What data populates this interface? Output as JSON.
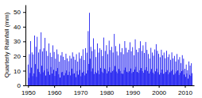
{
  "chart_data": {
    "type": "bar",
    "ylabel": "Quarterly Rainfall (mm)",
    "color": "#0000ee",
    "xlim": [
      1949.0,
      2013.5
    ],
    "ylim": [
      0,
      55
    ],
    "yticks": [
      0,
      10,
      20,
      30,
      40,
      50
    ],
    "xticks": [
      1950,
      1960,
      1970,
      1980,
      1990,
      2000,
      2010
    ],
    "x": [
      1950,
      1950.25,
      1950.5,
      1950.75,
      1951,
      1951.25,
      1951.5,
      1951.75,
      1952,
      1952.25,
      1952.5,
      1952.75,
      1953,
      1953.25,
      1953.5,
      1953.75,
      1954,
      1954.25,
      1954.5,
      1954.75,
      1955,
      1955.25,
      1955.5,
      1955.75,
      1956,
      1956.25,
      1956.5,
      1956.75,
      1957,
      1957.25,
      1957.5,
      1957.75,
      1958,
      1958.25,
      1958.5,
      1958.75,
      1959,
      1959.25,
      1959.5,
      1959.75,
      1960,
      1960.25,
      1960.5,
      1960.75,
      1961,
      1961.25,
      1961.5,
      1961.75,
      1962,
      1962.25,
      1962.5,
      1962.75,
      1963,
      1963.25,
      1963.5,
      1963.75,
      1964,
      1964.25,
      1964.5,
      1964.75,
      1965,
      1965.25,
      1965.5,
      1965.75,
      1966,
      1966.25,
      1966.5,
      1966.75,
      1967,
      1967.25,
      1967.5,
      1967.75,
      1968,
      1968.25,
      1968.5,
      1968.75,
      1969,
      1969.25,
      1969.5,
      1969.75,
      1970,
      1970.25,
      1970.5,
      1970.75,
      1971,
      1971.25,
      1971.5,
      1971.75,
      1972,
      1972.25,
      1972.5,
      1972.75,
      1973,
      1973.25,
      1973.5,
      1973.75,
      1974,
      1974.25,
      1974.5,
      1974.75,
      1975,
      1975.25,
      1975.5,
      1975.75,
      1976,
      1976.25,
      1976.5,
      1976.75,
      1977,
      1977.25,
      1977.5,
      1977.75,
      1978,
      1978.25,
      1978.5,
      1978.75,
      1979,
      1979.25,
      1979.5,
      1979.75,
      1980,
      1980.25,
      1980.5,
      1980.75,
      1981,
      1981.25,
      1981.5,
      1981.75,
      1982,
      1982.25,
      1982.5,
      1982.75,
      1983,
      1983.25,
      1983.5,
      1983.75,
      1984,
      1984.25,
      1984.5,
      1984.75,
      1985,
      1985.25,
      1985.5,
      1985.75,
      1986,
      1986.25,
      1986.5,
      1986.75,
      1987,
      1987.25,
      1987.5,
      1987.75,
      1988,
      1988.25,
      1988.5,
      1988.75,
      1989,
      1989.25,
      1989.5,
      1989.75,
      1990,
      1990.25,
      1990.5,
      1990.75,
      1991,
      1991.25,
      1991.5,
      1991.75,
      1992,
      1992.25,
      1992.5,
      1992.75,
      1993,
      1993.25,
      1993.5,
      1993.75,
      1994,
      1994.25,
      1994.5,
      1994.75,
      1995,
      1995.25,
      1995.5,
      1995.75,
      1996,
      1996.25,
      1996.5,
      1996.75,
      1997,
      1997.25,
      1997.5,
      1997.75,
      1998,
      1998.25,
      1998.5,
      1998.75,
      1999,
      1999.25,
      1999.5,
      1999.75,
      2000,
      2000.25,
      2000.5,
      2000.75,
      2001,
      2001.25,
      2001.5,
      2001.75,
      2002,
      2002.25,
      2002.5,
      2002.75,
      2003,
      2003.25,
      2003.5,
      2003.75,
      2004,
      2004.25,
      2004.5,
      2004.75,
      2005,
      2005.25,
      2005.5,
      2005.75,
      2006,
      2006.25,
      2006.5,
      2006.75,
      2007,
      2007.25,
      2007.5,
      2007.75,
      2008,
      2008.25,
      2008.5,
      2008.75,
      2009,
      2009.25,
      2009.5,
      2009.75,
      2010,
      2010.25,
      2010.5,
      2010.75,
      2011,
      2011.25,
      2011.5,
      2011.75,
      2012,
      2012.25,
      2012.5,
      2012.75
    ],
    "values": [
      14.2,
      5.1,
      21.3,
      8.4,
      30.2,
      12.1,
      22.5,
      6.3,
      21.1,
      8.2,
      34.0,
      14.5,
      26.3,
      5.8,
      33.1,
      11.2,
      22.4,
      9.1,
      24.6,
      7.8,
      36.2,
      13.4,
      23.1,
      8.9,
      25.3,
      10.2,
      32.4,
      6.7,
      23.5,
      11.3,
      20.1,
      9.4,
      28.6,
      7.2,
      22.3,
      12.5,
      19.4,
      8.1,
      27.3,
      10.6,
      22.8,
      6.4,
      18.2,
      9.7,
      24.5,
      11.8,
      21.3,
      7.6,
      16.2,
      5.3,
      20.4,
      8.9,
      22.7,
      9.2,
      19.5,
      6.8,
      17.3,
      8.4,
      21.6,
      10.2,
      18.4,
      7.1,
      16.5,
      9.3,
      20.2,
      6.8,
      18.3,
      11.4,
      22.5,
      7.9,
      19.6,
      8.2,
      17.4,
      5.6,
      21.3,
      9.8,
      16.2,
      7.3,
      22.4,
      10.5,
      18.3,
      6.2,
      20.1,
      8.7,
      24.6,
      9.4,
      17.3,
      6.8,
      25.4,
      8.1,
      22.3,
      10.2,
      37.0,
      14.6,
      49.5,
      18.2,
      26.3,
      9.5,
      23.4,
      11.6,
      32.1,
      7.8,
      24.5,
      9.2,
      19.3,
      8.4,
      28.6,
      10.1,
      22.4,
      7.6,
      25.3,
      11.8,
      24.2,
      9.3,
      20.1,
      8.5,
      32.6,
      11.4,
      23.5,
      10.7,
      27.4,
      8.2,
      21.3,
      9.6,
      30.5,
      12.3,
      24.1,
      8.8,
      26.3,
      9.7,
      22.4,
      10.5,
      35.1,
      13.2,
      26.8,
      9.4,
      23.1,
      8.3,
      20.4,
      11.2,
      28.3,
      9.8,
      22.6,
      8.1,
      25.4,
      7.9,
      21.3,
      10.4,
      30.2,
      12.1,
      25.6,
      9.3,
      22.5,
      8.7,
      24.3,
      9.6,
      29.4,
      11.5,
      23.2,
      8.4,
      26.1,
      9.2,
      20.5,
      10.8,
      31.4,
      12.6,
      24.3,
      9.1,
      22.6,
      8.5,
      25.4,
      10.3,
      30.1,
      11.8,
      23.5,
      9.7,
      27.3,
      8.6,
      22.1,
      10.5,
      29.6,
      12.4,
      24.2,
      9.8,
      21.4,
      8.1,
      18.3,
      9.4,
      25.6,
      11.2,
      22.4,
      8.7,
      20.3,
      7.8,
      24.5,
      9.6,
      28.1,
      11.4,
      23.6,
      8.9,
      21.5,
      7.4,
      19.2,
      8.6,
      24.3,
      10.8,
      20.5,
      7.9,
      22.4,
      8.3,
      18.5,
      9.2,
      23.6,
      10.4,
      19.3,
      7.6,
      21.2,
      8.9,
      17.4,
      9.8,
      22.5,
      10.6,
      18.4,
      7.3,
      20.1,
      8.2,
      16.3,
      9.5,
      21.4,
      10.2,
      17.6,
      7.1,
      19.3,
      8.5,
      15.2,
      9.7,
      20.6,
      10.5,
      18.2,
      7.4,
      11.3,
      5.8,
      14.2,
      8.1,
      10.4,
      4.6,
      16.3,
      7.2,
      13.5,
      6.4,
      15.1,
      8.3
    ]
  }
}
